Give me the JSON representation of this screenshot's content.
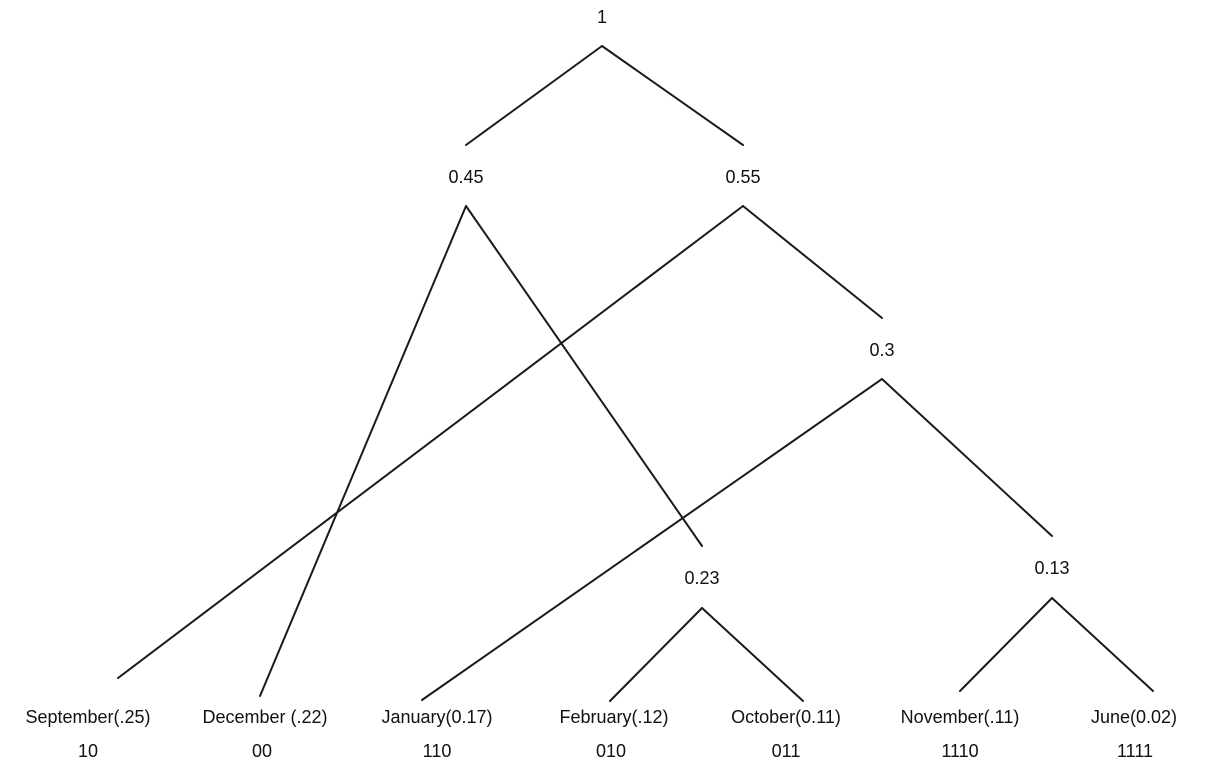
{
  "nodes": {
    "root": {
      "value": "1"
    },
    "n045": {
      "value": "0.45"
    },
    "n055": {
      "value": "0.55"
    },
    "n03": {
      "value": "0.3"
    },
    "n023": {
      "value": "0.23"
    },
    "n013": {
      "value": "0.13"
    }
  },
  "leaves": [
    {
      "label": "September(.25)",
      "code": "10"
    },
    {
      "label": "December (.22)",
      "code": "00"
    },
    {
      "label": "January(0.17)",
      "code": "110"
    },
    {
      "label": "February(.12)",
      "code": "010"
    },
    {
      "label": "October(0.11)",
      "code": "011"
    },
    {
      "label": "November(.11)",
      "code": "1110"
    },
    {
      "label": "June(0.02)",
      "code": "1111"
    }
  ],
  "line_color": "#1a1a1a"
}
